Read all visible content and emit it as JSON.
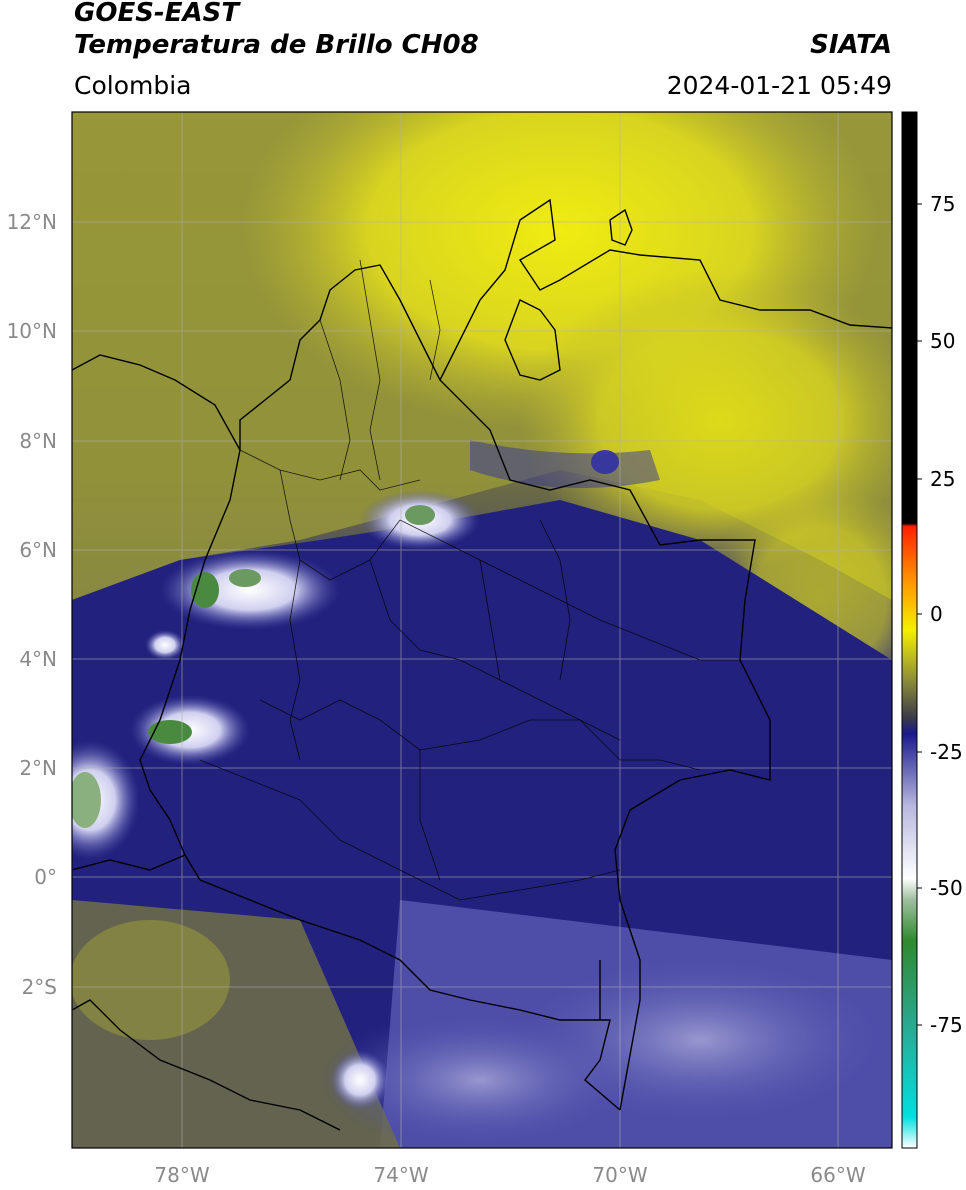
{
  "header": {
    "satellite": "GOES-EAST",
    "product": "Temperatura de Brillo CH08",
    "organization": "SIATA",
    "region": "Colombia",
    "datetime": "2024-01-21 05:49"
  },
  "map": {
    "lat_labels": [
      "12°N",
      "10°N",
      "8°N",
      "6°N",
      "4°N",
      "2°N",
      "0°",
      "2°S"
    ],
    "lon_labels": [
      "78°W",
      "74°W",
      "70°W",
      "66°W"
    ],
    "extent": {
      "lon_min": -80,
      "lon_max": -65,
      "lat_min": -5,
      "lat_max": 14
    }
  },
  "colorbar": {
    "ticks": [
      "75",
      "50",
      "25",
      "0",
      "-25",
      "-50",
      "-75"
    ],
    "range": [
      -95,
      90
    ],
    "colors": {
      "black": "#000000",
      "red": "#ff2000",
      "orange": "#ff9000",
      "yellow": "#f5f000",
      "olive": "#6d6d3c",
      "navy": "#1a1a8c",
      "lavender": "#b8b8e0",
      "white": "#ffffff",
      "green": "#2f8a2f",
      "teal": "#2aa890",
      "cyan": "#00e0e0"
    }
  }
}
